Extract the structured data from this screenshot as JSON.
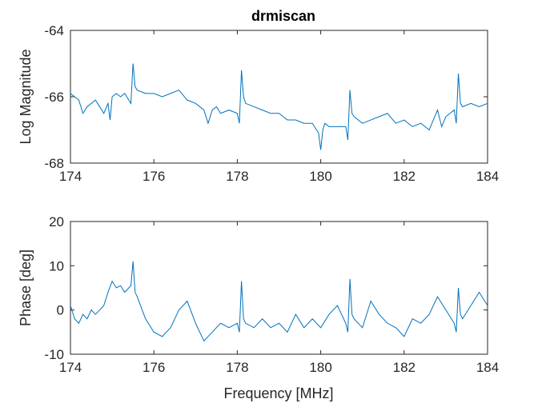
{
  "figure": {
    "title": "drmiscan",
    "xlabel": "Frequency [MHz]"
  },
  "chart_data": [
    {
      "type": "line",
      "title": "drmiscan",
      "xlabel": "",
      "ylabel": "Log Magnitude",
      "xlim": [
        174,
        184
      ],
      "ylim": [
        -68,
        -64
      ],
      "xticks": [
        "174",
        "176",
        "178",
        "180",
        "182",
        "184"
      ],
      "yticks": [
        "-68",
        "-66",
        "-64"
      ],
      "grid": false,
      "color": "#0072BD",
      "series": [
        {
          "x": [
            174.0,
            174.1,
            174.2,
            174.3,
            174.4,
            174.5,
            174.6,
            174.7,
            174.8,
            174.9,
            174.95,
            175.0,
            175.1,
            175.2,
            175.3,
            175.4,
            175.45,
            175.5,
            175.55,
            175.6,
            175.8,
            176.0,
            176.2,
            176.4,
            176.6,
            176.8,
            177.0,
            177.2,
            177.3,
            177.4,
            177.5,
            177.6,
            177.8,
            178.0,
            178.05,
            178.1,
            178.15,
            178.2,
            178.4,
            178.6,
            178.8,
            179.0,
            179.2,
            179.4,
            179.6,
            179.8,
            179.9,
            179.95,
            180.0,
            180.05,
            180.1,
            180.2,
            180.4,
            180.6,
            180.65,
            180.7,
            180.75,
            180.8,
            181.0,
            181.2,
            181.4,
            181.6,
            181.8,
            182.0,
            182.2,
            182.4,
            182.6,
            182.8,
            182.9,
            183.0,
            183.1,
            183.2,
            183.25,
            183.3,
            183.35,
            183.4,
            183.6,
            183.8,
            184.0
          ],
          "y": [
            -65.9,
            -66.0,
            -66.1,
            -66.5,
            -66.3,
            -66.2,
            -66.1,
            -66.3,
            -66.5,
            -66.2,
            -66.7,
            -66.0,
            -65.9,
            -66.0,
            -65.9,
            -66.1,
            -66.2,
            -65.0,
            -65.7,
            -65.8,
            -65.9,
            -65.9,
            -66.0,
            -65.9,
            -65.8,
            -66.1,
            -66.2,
            -66.4,
            -66.8,
            -66.4,
            -66.3,
            -66.5,
            -66.4,
            -66.5,
            -66.8,
            -65.2,
            -66.0,
            -66.2,
            -66.3,
            -66.4,
            -66.5,
            -66.5,
            -66.7,
            -66.7,
            -66.8,
            -66.8,
            -67.0,
            -67.1,
            -67.6,
            -67.0,
            -66.8,
            -66.9,
            -66.9,
            -66.9,
            -67.3,
            -65.8,
            -66.5,
            -66.6,
            -66.8,
            -66.7,
            -66.6,
            -66.5,
            -66.8,
            -66.7,
            -66.9,
            -66.8,
            -67.0,
            -66.4,
            -66.9,
            -66.6,
            -66.5,
            -66.4,
            -66.8,
            -65.3,
            -66.2,
            -66.3,
            -66.2,
            -66.3,
            -66.2
          ]
        }
      ]
    },
    {
      "type": "line",
      "title": "",
      "xlabel": "Frequency [MHz]",
      "ylabel": "Phase [deg]",
      "xlim": [
        174,
        184
      ],
      "ylim": [
        -10,
        20
      ],
      "xticks": [
        "174",
        "176",
        "178",
        "180",
        "182",
        "184"
      ],
      "yticks": [
        "-10",
        "0",
        "10",
        "20"
      ],
      "grid": false,
      "color": "#0072BD",
      "series": [
        {
          "x": [
            174.0,
            174.1,
            174.2,
            174.3,
            174.4,
            174.5,
            174.6,
            174.7,
            174.8,
            174.9,
            175.0,
            175.1,
            175.2,
            175.3,
            175.4,
            175.45,
            175.5,
            175.55,
            175.6,
            175.8,
            176.0,
            176.2,
            176.4,
            176.6,
            176.8,
            177.0,
            177.2,
            177.4,
            177.6,
            177.8,
            178.0,
            178.05,
            178.1,
            178.15,
            178.2,
            178.4,
            178.6,
            178.8,
            179.0,
            179.2,
            179.4,
            179.6,
            179.8,
            180.0,
            180.2,
            180.4,
            180.6,
            180.65,
            180.7,
            180.75,
            180.8,
            181.0,
            181.2,
            181.4,
            181.6,
            181.8,
            182.0,
            182.2,
            182.4,
            182.6,
            182.8,
            183.0,
            183.2,
            183.25,
            183.3,
            183.35,
            183.4,
            183.6,
            183.8,
            184.0
          ],
          "y": [
            1.0,
            -2.0,
            -3.0,
            -1.0,
            -2.0,
            0.0,
            -1.0,
            0.0,
            1.0,
            4.0,
            6.5,
            5.0,
            5.5,
            4.0,
            5.0,
            5.5,
            11.0,
            4.0,
            3.0,
            -2.0,
            -5.0,
            -6.0,
            -4.0,
            0.0,
            2.0,
            -3.0,
            -7.0,
            -5.0,
            -3.0,
            -4.0,
            -3.0,
            -5.0,
            6.5,
            -2.0,
            -3.0,
            -4.0,
            -2.0,
            -4.0,
            -3.0,
            -5.0,
            -1.0,
            -4.0,
            -2.0,
            -4.0,
            -1.0,
            1.0,
            -3.0,
            -5.0,
            7.0,
            -1.0,
            -2.0,
            -4.0,
            2.0,
            -1.0,
            -3.0,
            -4.0,
            -6.0,
            -2.0,
            -3.0,
            -1.0,
            3.0,
            0.0,
            -3.0,
            -5.0,
            5.0,
            -1.0,
            -2.0,
            1.0,
            4.0,
            1.0
          ]
        }
      ]
    }
  ]
}
